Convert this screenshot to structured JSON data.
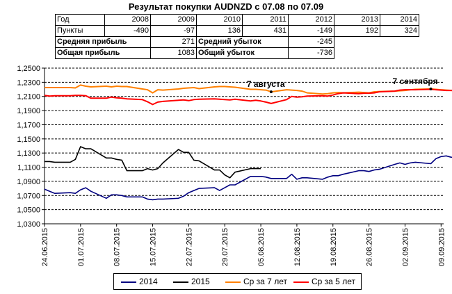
{
  "title": "Результат покупки AUDNZD с 07.08 по 07.09",
  "stats_table": {
    "year_label": "Год",
    "points_label": "Пункты",
    "years": [
      "2008",
      "2009",
      "2010",
      "2011",
      "2012",
      "2013",
      "2014"
    ],
    "points": [
      "-490",
      "-97",
      "136",
      "431",
      "-149",
      "192",
      "324"
    ],
    "avg_profit_label": "Средняя прибыль",
    "avg_profit": "271",
    "avg_loss_label": "Средний убыток",
    "avg_loss": "-245",
    "total_profit_label": "Общая прибыль",
    "total_profit": "1083",
    "total_loss_label": "Общий убыток",
    "total_loss": "-736"
  },
  "chart_data": {
    "type": "line",
    "ylim": [
      1.03,
      1.25
    ],
    "y_ticks": [
      "1,0300",
      "1,0500",
      "1,0700",
      "1,0900",
      "1,1100",
      "1,1300",
      "1,1500",
      "1,1700",
      "1,1900",
      "1,2100",
      "1,2300",
      "1,2500"
    ],
    "x_tick_labels": [
      "24.06.2015",
      "01.07.2015",
      "08.07.2015",
      "15.07.2015",
      "22.07.2015",
      "29.07.2015",
      "05.08.2015",
      "12.08.2015",
      "19.08.2015",
      "26.08.2015",
      "02.09.2015",
      "09.09.2015"
    ],
    "x_start": "2015-06-24",
    "x_end": "2015-09-09",
    "grid": "horizontal dashed",
    "legend_position": "bottom",
    "annotations": [
      {
        "text": "7 августа",
        "x": "2015-08-07",
        "y": 1.2165
      },
      {
        "text": "7 сентября",
        "x": "2015-09-07",
        "y": 1.2205
      }
    ],
    "series": [
      {
        "name": "2014",
        "color": "#000080",
        "points": [
          [
            "2015-06-24",
            1.079
          ],
          [
            "2015-06-25",
            1.076
          ],
          [
            "2015-06-26",
            1.073
          ],
          [
            "2015-06-29",
            1.074
          ],
          [
            "2015-06-30",
            1.073
          ],
          [
            "2015-07-01",
            1.078
          ],
          [
            "2015-07-02",
            1.081
          ],
          [
            "2015-07-03",
            1.076
          ],
          [
            "2015-07-06",
            1.066
          ],
          [
            "2015-07-07",
            1.071
          ],
          [
            "2015-07-08",
            1.071
          ],
          [
            "2015-07-09",
            1.07
          ],
          [
            "2015-07-10",
            1.068
          ],
          [
            "2015-07-13",
            1.068
          ],
          [
            "2015-07-14",
            1.065
          ],
          [
            "2015-07-15",
            1.064
          ],
          [
            "2015-07-16",
            1.065
          ],
          [
            "2015-07-17",
            1.065
          ],
          [
            "2015-07-20",
            1.066
          ],
          [
            "2015-07-21",
            1.069
          ],
          [
            "2015-07-22",
            1.074
          ],
          [
            "2015-07-23",
            1.077
          ],
          [
            "2015-07-24",
            1.08
          ],
          [
            "2015-07-27",
            1.081
          ],
          [
            "2015-07-28",
            1.077
          ],
          [
            "2015-07-29",
            1.081
          ],
          [
            "2015-07-30",
            1.085
          ],
          [
            "2015-07-31",
            1.085
          ],
          [
            "2015-08-03",
            1.097
          ],
          [
            "2015-08-04",
            1.097
          ],
          [
            "2015-08-05",
            1.097
          ],
          [
            "2015-08-06",
            1.096
          ],
          [
            "2015-08-07",
            1.094
          ],
          [
            "2015-08-10",
            1.094
          ],
          [
            "2015-08-11",
            1.1
          ],
          [
            "2015-08-12",
            1.093
          ],
          [
            "2015-08-13",
            1.095
          ],
          [
            "2015-08-14",
            1.095
          ],
          [
            "2015-08-17",
            1.093
          ],
          [
            "2015-08-18",
            1.096
          ],
          [
            "2015-08-19",
            1.098
          ],
          [
            "2015-08-20",
            1.098
          ],
          [
            "2015-08-21",
            1.1
          ],
          [
            "2015-08-24",
            1.105
          ],
          [
            "2015-08-25",
            1.105
          ],
          [
            "2015-08-26",
            1.104
          ],
          [
            "2015-08-27",
            1.106
          ],
          [
            "2015-08-28",
            1.107
          ],
          [
            "2015-08-31",
            1.114
          ],
          [
            "2015-09-01",
            1.116
          ],
          [
            "2015-09-02",
            1.114
          ],
          [
            "2015-09-03",
            1.116
          ],
          [
            "2015-09-04",
            1.117
          ],
          [
            "2015-09-07",
            1.115
          ],
          [
            "2015-09-08",
            1.122
          ],
          [
            "2015-09-09",
            1.125
          ],
          [
            "2015-09-10",
            1.126
          ],
          [
            "2015-09-11",
            1.124
          ],
          [
            "2015-09-14",
            1.126
          ],
          [
            "2015-09-15",
            1.123
          ],
          [
            "2015-09-16",
            1.118
          ],
          [
            "2015-09-17",
            1.114
          ],
          [
            "2015-09-18",
            1.113
          ]
        ]
      },
      {
        "name": "2015",
        "color": "#000000",
        "points": [
          [
            "2015-06-24",
            1.118
          ],
          [
            "2015-06-25",
            1.118
          ],
          [
            "2015-06-26",
            1.117
          ],
          [
            "2015-06-29",
            1.117
          ],
          [
            "2015-06-30",
            1.121
          ],
          [
            "2015-07-01",
            1.139
          ],
          [
            "2015-07-02",
            1.136
          ],
          [
            "2015-07-03",
            1.136
          ],
          [
            "2015-07-06",
            1.123
          ],
          [
            "2015-07-07",
            1.123
          ],
          [
            "2015-07-08",
            1.121
          ],
          [
            "2015-07-09",
            1.12
          ],
          [
            "2015-07-10",
            1.105
          ],
          [
            "2015-07-13",
            1.105
          ],
          [
            "2015-07-14",
            1.108
          ],
          [
            "2015-07-15",
            1.106
          ],
          [
            "2015-07-16",
            1.108
          ],
          [
            "2015-07-17",
            1.116
          ],
          [
            "2015-07-20",
            1.135
          ],
          [
            "2015-07-21",
            1.131
          ],
          [
            "2015-07-22",
            1.131
          ],
          [
            "2015-07-23",
            1.12
          ],
          [
            "2015-07-24",
            1.119
          ],
          [
            "2015-07-27",
            1.106
          ],
          [
            "2015-07-28",
            1.106
          ],
          [
            "2015-07-29",
            1.099
          ],
          [
            "2015-07-30",
            1.095
          ],
          [
            "2015-07-31",
            1.103
          ],
          [
            "2015-08-03",
            1.108
          ],
          [
            "2015-08-04",
            1.108
          ],
          [
            "2015-08-05",
            1.108
          ]
        ]
      },
      {
        "name": "Ср за 7 лет",
        "color": "#ff8000",
        "points": [
          [
            "2015-06-24",
            1.2225
          ],
          [
            "2015-06-25",
            1.2225
          ],
          [
            "2015-06-26",
            1.2225
          ],
          [
            "2015-06-29",
            1.2225
          ],
          [
            "2015-06-30",
            1.222
          ],
          [
            "2015-07-01",
            1.226
          ],
          [
            "2015-07-02",
            1.2245
          ],
          [
            "2015-07-03",
            1.2235
          ],
          [
            "2015-07-06",
            1.2245
          ],
          [
            "2015-07-07",
            1.2235
          ],
          [
            "2015-07-08",
            1.2245
          ],
          [
            "2015-07-09",
            1.224
          ],
          [
            "2015-07-10",
            1.224
          ],
          [
            "2015-07-13",
            1.2205
          ],
          [
            "2015-07-14",
            1.2195
          ],
          [
            "2015-07-15",
            1.215
          ],
          [
            "2015-07-16",
            1.2195
          ],
          [
            "2015-07-17",
            1.219
          ],
          [
            "2015-07-20",
            1.2205
          ],
          [
            "2015-07-21",
            1.2215
          ],
          [
            "2015-07-22",
            1.222
          ],
          [
            "2015-07-23",
            1.2225
          ],
          [
            "2015-07-24",
            1.221
          ],
          [
            "2015-07-27",
            1.2235
          ],
          [
            "2015-07-28",
            1.224
          ],
          [
            "2015-07-29",
            1.224
          ],
          [
            "2015-07-30",
            1.2235
          ],
          [
            "2015-07-31",
            1.223
          ],
          [
            "2015-08-03",
            1.22
          ],
          [
            "2015-08-04",
            1.22
          ],
          [
            "2015-08-05",
            1.2195
          ],
          [
            "2015-08-06",
            1.219
          ],
          [
            "2015-08-07",
            1.2165
          ],
          [
            "2015-08-10",
            1.2195
          ],
          [
            "2015-08-11",
            1.219
          ],
          [
            "2015-08-12",
            1.2185
          ],
          [
            "2015-08-13",
            1.2175
          ],
          [
            "2015-08-14",
            1.215
          ],
          [
            "2015-08-17",
            1.2135
          ],
          [
            "2015-08-18",
            1.214
          ],
          [
            "2015-08-19",
            1.215
          ],
          [
            "2015-08-20",
            1.2155
          ],
          [
            "2015-08-21",
            1.215
          ],
          [
            "2015-08-24",
            1.216
          ],
          [
            "2015-08-25",
            1.2155
          ],
          [
            "2015-08-26",
            1.215
          ],
          [
            "2015-08-27",
            1.2165
          ],
          [
            "2015-08-28",
            1.217
          ],
          [
            "2015-08-31",
            1.2175
          ],
          [
            "2015-09-01",
            1.218
          ],
          [
            "2015-09-02",
            1.2185
          ],
          [
            "2015-09-03",
            1.2195
          ],
          [
            "2015-09-04",
            1.22
          ],
          [
            "2015-09-07",
            1.2205
          ],
          [
            "2015-09-08",
            1.22
          ],
          [
            "2015-09-09",
            1.2195
          ],
          [
            "2015-09-10",
            1.219
          ],
          [
            "2015-09-11",
            1.2185
          ],
          [
            "2015-09-14",
            1.218
          ],
          [
            "2015-09-15",
            1.2175
          ]
        ]
      },
      {
        "name": "Ср за 5 лет",
        "color": "#ff0000",
        "points": [
          [
            "2015-06-24",
            1.2115
          ],
          [
            "2015-06-25",
            1.2105
          ],
          [
            "2015-06-26",
            1.211
          ],
          [
            "2015-06-29",
            1.211
          ],
          [
            "2015-06-30",
            1.2115
          ],
          [
            "2015-07-01",
            1.2115
          ],
          [
            "2015-07-02",
            1.211
          ],
          [
            "2015-07-03",
            1.2075
          ],
          [
            "2015-07-06",
            1.2075
          ],
          [
            "2015-07-07",
            1.209
          ],
          [
            "2015-07-08",
            1.208
          ],
          [
            "2015-07-09",
            1.2075
          ],
          [
            "2015-07-10",
            1.2065
          ],
          [
            "2015-07-13",
            1.2055
          ],
          [
            "2015-07-14",
            1.2025
          ],
          [
            "2015-07-15",
            1.1985
          ],
          [
            "2015-07-16",
            1.202
          ],
          [
            "2015-07-17",
            1.203
          ],
          [
            "2015-07-20",
            1.2045
          ],
          [
            "2015-07-21",
            1.205
          ],
          [
            "2015-07-22",
            1.204
          ],
          [
            "2015-07-23",
            1.2055
          ],
          [
            "2015-07-24",
            1.206
          ],
          [
            "2015-07-27",
            1.2065
          ],
          [
            "2015-07-28",
            1.206
          ],
          [
            "2015-07-29",
            1.2055
          ],
          [
            "2015-07-30",
            1.205
          ],
          [
            "2015-07-31",
            1.206
          ],
          [
            "2015-08-03",
            1.2035
          ],
          [
            "2015-08-04",
            1.2045
          ],
          [
            "2015-08-05",
            1.2035
          ],
          [
            "2015-08-06",
            1.202
          ],
          [
            "2015-08-07",
            1.2
          ],
          [
            "2015-08-10",
            1.2055
          ],
          [
            "2015-08-11",
            1.21
          ],
          [
            "2015-08-12",
            1.209
          ],
          [
            "2015-08-13",
            1.2095
          ],
          [
            "2015-08-14",
            1.2105
          ],
          [
            "2015-08-17",
            1.211
          ],
          [
            "2015-08-18",
            1.2105
          ],
          [
            "2015-08-19",
            1.212
          ],
          [
            "2015-08-20",
            1.214
          ],
          [
            "2015-08-21",
            1.215
          ],
          [
            "2015-08-24",
            1.214
          ],
          [
            "2015-08-25",
            1.2145
          ],
          [
            "2015-08-26",
            1.2145
          ],
          [
            "2015-08-27",
            1.215
          ],
          [
            "2015-08-28",
            1.2165
          ],
          [
            "2015-08-31",
            1.2175
          ],
          [
            "2015-09-01",
            1.219
          ],
          [
            "2015-09-02",
            1.2195
          ],
          [
            "2015-09-03",
            1.2195
          ],
          [
            "2015-09-04",
            1.2195
          ],
          [
            "2015-09-07",
            1.22
          ],
          [
            "2015-09-08",
            1.2195
          ],
          [
            "2015-09-09",
            1.219
          ],
          [
            "2015-09-10",
            1.2185
          ],
          [
            "2015-09-11",
            1.2185
          ],
          [
            "2015-09-14",
            1.218
          ],
          [
            "2015-09-15",
            1.2175
          ]
        ]
      }
    ]
  }
}
